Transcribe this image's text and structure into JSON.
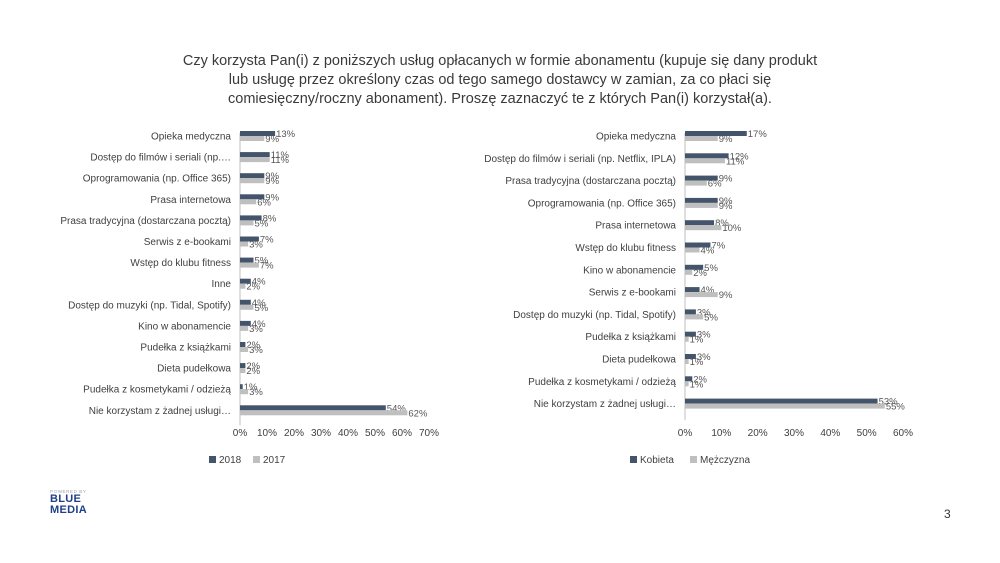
{
  "title_lines": [
    "Czy korzysta Pan(i) z poniższych usług opłacanych w formie abonamentu (kupuje się dany produkt",
    "lub usługę przez określony czas od tego samego dostawcy w zamian, za co płaci się",
    "comiesięczny/roczny abonament). Proszę zaznaczyć te z których Pan(i) korzystał(a)."
  ],
  "colors": {
    "dark": "#44546A",
    "light": "#BFBFBF"
  },
  "chart_data": [
    {
      "type": "bar",
      "orientation": "horizontal",
      "categories": [
        "Opieka medyczna",
        "Dostęp do filmów i seriali (np.…",
        "Oprogramowania (np. Office 365)",
        "Prasa internetowa",
        "Prasa tradycyjna (dostarczana pocztą)",
        "Serwis z e-bookami",
        "Wstęp do klubu fitness",
        "Inne",
        "Dostęp do muzyki (np. Tidal, Spotify)",
        "Kino w abonamencie",
        "Pudełka z książkami",
        "Dieta pudełkowa",
        "Pudełka z kosmetykami / odzieżą",
        "Nie korzystam z żadnej usługi…"
      ],
      "series": [
        {
          "name": "2018",
          "values": [
            13,
            11,
            9,
            9,
            8,
            7,
            5,
            4,
            4,
            4,
            2,
            2,
            1,
            54
          ]
        },
        {
          "name": "2017",
          "values": [
            9,
            11,
            9,
            6,
            5,
            3,
            7,
            2,
            5,
            3,
            3,
            2,
            3,
            62
          ]
        }
      ],
      "value_labels": [
        [
          "13%",
          "11%",
          "9%",
          "9%",
          "8%",
          "7%",
          "5%",
          "4%",
          "4%",
          "4%",
          "2%",
          "2%",
          "1%",
          "54%"
        ],
        [
          "9%",
          "11%",
          "9%",
          "6%",
          "5%",
          "3%",
          "7%",
          "2%",
          "5%",
          "3%",
          "3%",
          "2%",
          "3%",
          "62%"
        ]
      ],
      "xlim": [
        0,
        70
      ],
      "ticks": [
        "0%",
        "10%",
        "20%",
        "30%",
        "40%",
        "50%",
        "60%",
        "70%"
      ],
      "legend": [
        "2018",
        "2017"
      ],
      "legend_position": "bottom-left"
    },
    {
      "type": "bar",
      "orientation": "horizontal",
      "categories": [
        "Opieka medyczna",
        "Dostęp do filmów i seriali (np. Netflix, IPLA)",
        "Prasa tradycyjna (dostarczana pocztą)",
        "Oprogramowania (np. Office 365)",
        "Prasa internetowa",
        "Wstęp do klubu fitness",
        "Kino w abonamencie",
        "Serwis z e-bookami",
        "Dostęp do muzyki (np. Tidal, Spotify)",
        "Pudełka z książkami",
        "Dieta pudełkowa",
        "Pudełka z kosmetykami / odzieżą",
        "Nie korzystam z żadnej usługi…"
      ],
      "series": [
        {
          "name": "Kobieta",
          "values": [
            17,
            12,
            9,
            9,
            8,
            7,
            5,
            4,
            3,
            3,
            3,
            2,
            53
          ]
        },
        {
          "name": "Mężczyzna",
          "values": [
            9,
            11,
            6,
            9,
            10,
            4,
            2,
            9,
            5,
            1,
            1,
            1,
            55
          ]
        }
      ],
      "value_labels": [
        [
          "17%",
          "12%",
          "9%",
          "9%",
          "8%",
          "7%",
          "5%",
          "4%",
          "3%",
          "3%",
          "3%",
          "2%",
          "53%"
        ],
        [
          "9%",
          "11%",
          "6%",
          "9%",
          "10%",
          "4%",
          "2%",
          "9%",
          "5%",
          "1%",
          "1%",
          "1%",
          "55%"
        ]
      ],
      "xlim": [
        0,
        60
      ],
      "ticks": [
        "0%",
        "10%",
        "20%",
        "30%",
        "40%",
        "50%",
        "60%"
      ],
      "legend": [
        "Kobieta",
        "Mężczyzna"
      ],
      "legend_position": "bottom-left"
    }
  ],
  "logo": {
    "top": "POWERED BY",
    "line1": "BLUE",
    "line2": "MEDIA"
  },
  "page_number": "3"
}
